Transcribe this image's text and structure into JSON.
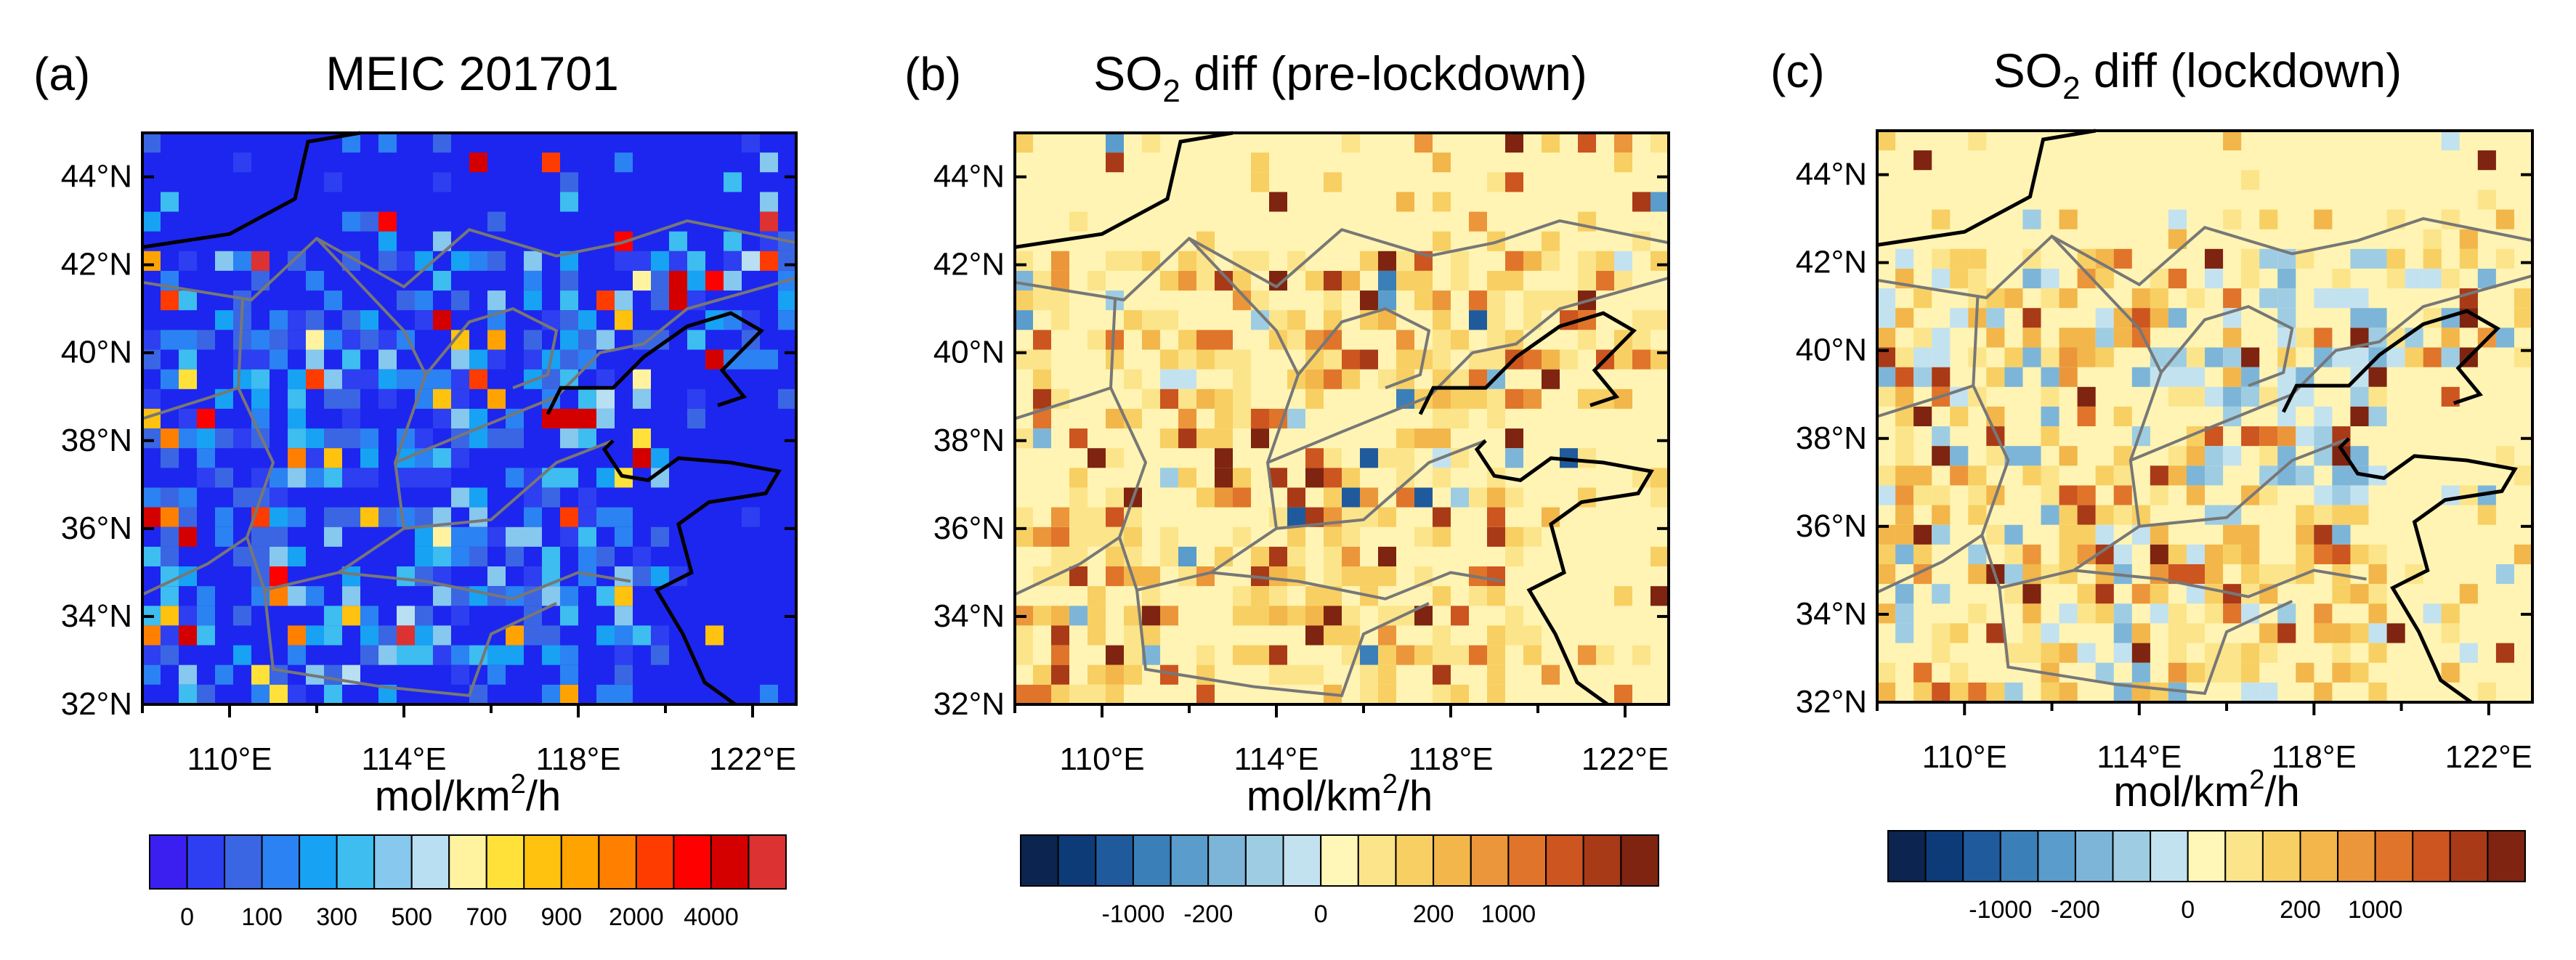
{
  "chart_data": [
    {
      "type": "heatmap",
      "panel_label": "(a)",
      "title": {
        "main": "MEIC 201701",
        "sub": "",
        "rest": ""
      },
      "xlabel": "",
      "ylabel": "",
      "xlim": [
        108,
        123
      ],
      "ylim": [
        32,
        45
      ],
      "xticks": [
        "110°E",
        "114°E",
        "118°E",
        "122°E"
      ],
      "yticks": [
        "32°N",
        "34°N",
        "36°N",
        "38°N",
        "40°N",
        "42°N",
        "44°N"
      ],
      "colorbar": {
        "units": {
          "base": "mol/km",
          "sup": "2",
          "rest": "/h"
        },
        "colors": [
          "#3a1ff0",
          "#2d3ff0",
          "#3a66e4",
          "#2b82f2",
          "#17a2f4",
          "#3dbdf0",
          "#86c8ee",
          "#b8e0f2",
          "#fff3a0",
          "#ffe13a",
          "#ffc20f",
          "#ffa300",
          "#ff7f00",
          "#ff3c00",
          "#ff0000",
          "#d40000",
          "#dc3232"
        ],
        "labels": [
          "0",
          "100",
          "300",
          "500",
          "700",
          "900",
          "2000",
          "4000"
        ]
      },
      "background_color": "#1d26ee",
      "summary": "Gridded SO2 emission over North China; background near 0 with scattered point sources up to >4000"
    },
    {
      "type": "heatmap",
      "panel_label": "(b)",
      "title": {
        "main": "SO",
        "sub": "2",
        "rest": " diff (pre-lockdown)"
      },
      "xlabel": "",
      "ylabel": "",
      "xlim": [
        108,
        123
      ],
      "ylim": [
        32,
        45
      ],
      "xticks": [
        "110°E",
        "114°E",
        "118°E",
        "122°E"
      ],
      "yticks": [
        "32°N",
        "34°N",
        "36°N",
        "38°N",
        "40°N",
        "42°N",
        "44°N"
      ],
      "colorbar": {
        "units": {
          "base": "mol/km",
          "sup": "2",
          "rest": "/h"
        },
        "colors": [
          "#0b2550",
          "#0d3b78",
          "#1f5a9c",
          "#3a7fb8",
          "#5a9ccb",
          "#7db5d8",
          "#9ecde3",
          "#c3e2ef",
          "#fff7b8",
          "#fce48a",
          "#f8cf62",
          "#f2b64a",
          "#eb963a",
          "#e0742a",
          "#cc5520",
          "#a83a18",
          "#7e2410"
        ],
        "labels": [
          "-1000",
          "-200",
          "0",
          "200",
          "1000"
        ]
      },
      "background_color": "#fff4b3",
      "summary": "SO2 emission difference (pre-lockdown); mostly small positive changes, scattered stronger positive cells and a few negative cells"
    },
    {
      "type": "heatmap",
      "panel_label": "(c)",
      "title": {
        "main": "SO",
        "sub": "2",
        "rest": " diff (lockdown)"
      },
      "xlabel": "",
      "ylabel": "",
      "xlim": [
        108,
        123
      ],
      "ylim": [
        32,
        45
      ],
      "xticks": [
        "110°E",
        "114°E",
        "118°E",
        "122°E"
      ],
      "yticks": [
        "32°N",
        "34°N",
        "36°N",
        "38°N",
        "40°N",
        "42°N",
        "44°N"
      ],
      "colorbar": {
        "units": {
          "base": "mol/km",
          "sup": "2",
          "rest": "/h"
        },
        "colors": [
          "#0b2550",
          "#0d3b78",
          "#1f5a9c",
          "#3a7fb8",
          "#5a9ccb",
          "#7db5d8",
          "#9ecde3",
          "#c3e2ef",
          "#fff7b8",
          "#fce48a",
          "#f8cf62",
          "#f2b64a",
          "#eb963a",
          "#e0742a",
          "#cc5520",
          "#a83a18",
          "#7e2410"
        ],
        "labels": [
          "-1000",
          "-200",
          "0",
          "200",
          "1000"
        ]
      },
      "background_color": "#fff4b3",
      "summary": "SO2 emission difference (lockdown); mixed small positive and negative changes, negatives concentrated around Beijing-Tianjin-Hebei"
    }
  ]
}
